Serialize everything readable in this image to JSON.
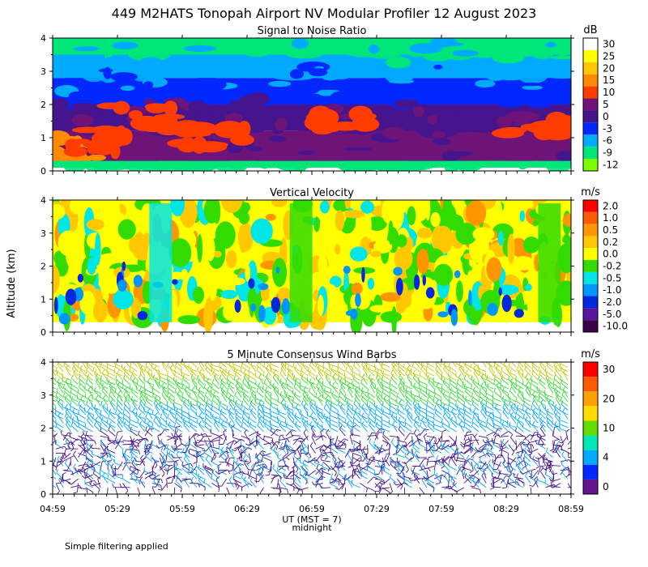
{
  "title": "449 M2HATS Tonopah Airport NV Modular Profiler 12 August 2023",
  "footnote": "Simple filtering applied",
  "y_axis_label": "Altitude (km)",
  "x_axis_label": "UT (MST = 7)",
  "midnight_label": "midnight",
  "chart_data": [
    {
      "type": "heatmap",
      "title": "Signal to Noise Ratio",
      "units": "dB",
      "x_ticks": [
        "04:59",
        "05:29",
        "05:59",
        "06:29",
        "06:59",
        "07:29",
        "07:59",
        "08:29",
        "08:59"
      ],
      "y_ticks": [
        "0",
        "1",
        "2",
        "3",
        "4"
      ],
      "ylim": [
        0,
        4
      ],
      "color_levels": [
        {
          "label": "30",
          "color": "#ffffff"
        },
        {
          "label": "25",
          "color": "#ffff00"
        },
        {
          "label": "20",
          "color": "#ffc800"
        },
        {
          "label": "15",
          "color": "#ff8c00"
        },
        {
          "label": "10",
          "color": "#ff3c00"
        },
        {
          "label": "5",
          "color": "#6e1478"
        },
        {
          "label": "0",
          "color": "#46148c"
        },
        {
          "label": "-3",
          "color": "#0028ff"
        },
        {
          "label": "-6",
          "color": "#00aaff"
        },
        {
          "label": "-9",
          "color": "#00e678"
        },
        {
          "label": "-12",
          "color": "#78ff00"
        }
      ],
      "height_bands_km": [
        {
          "bottom": 0.1,
          "top": 0.3,
          "level": "-9"
        },
        {
          "bottom": 0.3,
          "top": 1.2,
          "level": "5"
        },
        {
          "bottom": 1.2,
          "top": 2.0,
          "level": "0"
        },
        {
          "bottom": 2.0,
          "top": 2.8,
          "level": "-3"
        },
        {
          "bottom": 2.8,
          "top": 3.5,
          "level": "-6"
        },
        {
          "bottom": 3.5,
          "top": 4.0,
          "level": "-9"
        }
      ],
      "features": [
        {
          "x": "05:09",
          "y": 0.7,
          "level": "15"
        },
        {
          "x": "05:19",
          "y": 0.9,
          "level": "10"
        },
        {
          "x": "05:39",
          "y": 1.6,
          "level": "10"
        },
        {
          "x": "06:14",
          "y": 1.0,
          "level": "10"
        },
        {
          "x": "07:14",
          "y": 1.6,
          "level": "10"
        },
        {
          "x": "08:44",
          "y": 1.4,
          "level": "10"
        }
      ]
    },
    {
      "type": "heatmap",
      "title": "Vertical Velocity",
      "units": "m/s",
      "x_ticks": [
        "04:59",
        "05:29",
        "05:59",
        "06:29",
        "06:59",
        "07:29",
        "07:59",
        "08:29",
        "08:59"
      ],
      "y_ticks": [
        "0",
        "1",
        "2",
        "3",
        "4"
      ],
      "ylim": [
        0,
        4
      ],
      "color_levels": [
        {
          "label": "2.0",
          "color": "#ff0000"
        },
        {
          "label": "1.0",
          "color": "#ff5a00"
        },
        {
          "label": "0.5",
          "color": "#ff9600"
        },
        {
          "label": "0.2",
          "color": "#ffc800"
        },
        {
          "label": "0.0",
          "color": "#ffff00"
        },
        {
          "label": "-0.2",
          "color": "#32dc00"
        },
        {
          "label": "-0.5",
          "color": "#00e6e6"
        },
        {
          "label": "-1.0",
          "color": "#0096ff"
        },
        {
          "label": "-2.0",
          "color": "#0028dc"
        },
        {
          "label": "-5.0",
          "color": "#5a14a0"
        },
        {
          "label": "-10.0",
          "color": "#3c0046"
        }
      ],
      "features": [
        {
          "x": "05:49",
          "y": 2.0,
          "level": "-0.5"
        },
        {
          "x": "06:54",
          "y": 1.2,
          "level": "-0.2"
        },
        {
          "x": "08:49",
          "y": 2.2,
          "level": "-0.2"
        }
      ]
    },
    {
      "type": "wind_barbs",
      "title": "5 Minute Consensus Wind Barbs",
      "units": "m/s",
      "x_ticks": [
        "04:59",
        "05:29",
        "05:59",
        "06:29",
        "06:59",
        "07:29",
        "07:59",
        "08:29",
        "08:59"
      ],
      "y_ticks": [
        "0",
        "1",
        "2",
        "3",
        "4"
      ],
      "ylim": [
        0,
        4
      ],
      "color_levels": [
        {
          "label": "30",
          "color": "#ff0000"
        },
        {
          "label": "",
          "color": "#ff5a00"
        },
        {
          "label": "20",
          "color": "#ffa000"
        },
        {
          "label": "",
          "color": "#ffdc00"
        },
        {
          "label": "10",
          "color": "#64dc00"
        },
        {
          "label": "",
          "color": "#00e6b4"
        },
        {
          "label": "4",
          "color": "#00aaff"
        },
        {
          "label": "",
          "color": "#0028ff"
        },
        {
          "label": "0",
          "color": "#64148c"
        }
      ],
      "speed_by_height_km": [
        {
          "bottom": 0.2,
          "top": 1.8,
          "speed": "0"
        },
        {
          "bottom": 1.8,
          "top": 2.6,
          "speed": "4"
        },
        {
          "bottom": 2.6,
          "top": 3.4,
          "speed": "10"
        },
        {
          "bottom": 3.4,
          "top": 3.9,
          "speed": "20"
        }
      ]
    }
  ]
}
